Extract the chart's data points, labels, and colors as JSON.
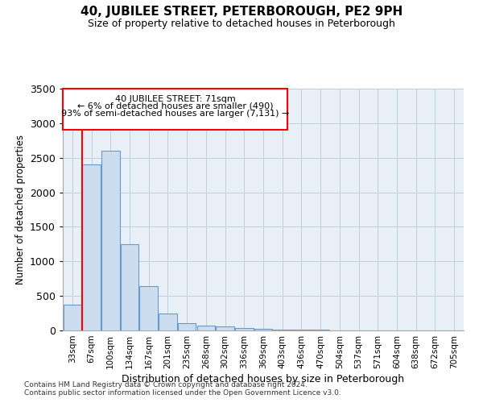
{
  "title": "40, JUBILEE STREET, PETERBOROUGH, PE2 9PH",
  "subtitle": "Size of property relative to detached houses in Peterborough",
  "xlabel": "Distribution of detached houses by size in Peterborough",
  "ylabel": "Number of detached properties",
  "footer1": "Contains HM Land Registry data © Crown copyright and database right 2024.",
  "footer2": "Contains public sector information licensed under the Open Government Licence v3.0.",
  "categories": [
    "33sqm",
    "67sqm",
    "100sqm",
    "134sqm",
    "167sqm",
    "201sqm",
    "235sqm",
    "268sqm",
    "302sqm",
    "336sqm",
    "369sqm",
    "403sqm",
    "436sqm",
    "470sqm",
    "504sqm",
    "537sqm",
    "571sqm",
    "604sqm",
    "638sqm",
    "672sqm",
    "705sqm"
  ],
  "values": [
    370,
    2400,
    2600,
    1250,
    640,
    250,
    110,
    65,
    55,
    35,
    25,
    15,
    10,
    8,
    5,
    5,
    5,
    5,
    5,
    5,
    5
  ],
  "bar_color": "#ccddf0",
  "bar_edge_color": "#6699cc",
  "grid_color": "#c0d0e0",
  "background_color": "#e8eff7",
  "annotation_line1": "40 JUBILEE STREET: 71sqm",
  "annotation_line2": "← 6% of detached houses are smaller (490)",
  "annotation_line3": "93% of semi-detached houses are larger (7,131) →",
  "annotation_box_edge_color": "red",
  "marker_line_color": "red",
  "marker_bar_index": 1,
  "ylim": [
    0,
    3500
  ],
  "yticks": [
    0,
    500,
    1000,
    1500,
    2000,
    2500,
    3000,
    3500
  ]
}
